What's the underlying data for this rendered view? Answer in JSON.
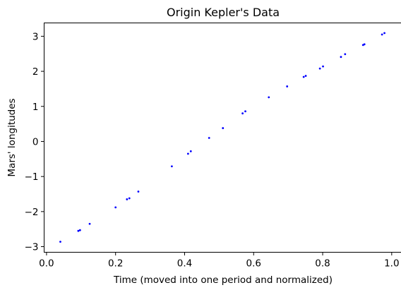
{
  "chart_data": {
    "type": "scatter",
    "title": "Origin Kepler's Data",
    "xlabel": "Time (moved into one period and normalized)",
    "ylabel": "Mars' longitudes",
    "xlim": [
      -0.007,
      1.03
    ],
    "ylim": [
      -3.16,
      3.38
    ],
    "xticks": [
      0.0,
      0.2,
      0.4,
      0.6,
      0.8,
      1.0
    ],
    "xtick_labels": [
      "0.0",
      "0.2",
      "0.4",
      "0.6",
      "0.8",
      "1.0"
    ],
    "yticks": [
      -3,
      -2,
      -1,
      0,
      1,
      2,
      3
    ],
    "ytick_labels": [
      "−3",
      "−2",
      "−1",
      "0",
      "1",
      "2",
      "3"
    ],
    "grid": false,
    "marker_color": "#0000ff",
    "x": [
      0.04,
      0.092,
      0.097,
      0.125,
      0.2,
      0.233,
      0.24,
      0.266,
      0.363,
      0.41,
      0.418,
      0.471,
      0.511,
      0.568,
      0.576,
      0.644,
      0.697,
      0.745,
      0.751,
      0.792,
      0.801,
      0.853,
      0.865,
      0.917,
      0.921,
      0.972,
      0.979
    ],
    "y": [
      -2.86,
      -2.55,
      -2.53,
      -2.35,
      -1.88,
      -1.65,
      -1.62,
      -1.43,
      -0.71,
      -0.35,
      -0.28,
      0.1,
      0.38,
      0.8,
      0.86,
      1.26,
      1.57,
      1.84,
      1.87,
      2.08,
      2.14,
      2.41,
      2.49,
      2.75,
      2.77,
      3.05,
      3.09
    ]
  }
}
